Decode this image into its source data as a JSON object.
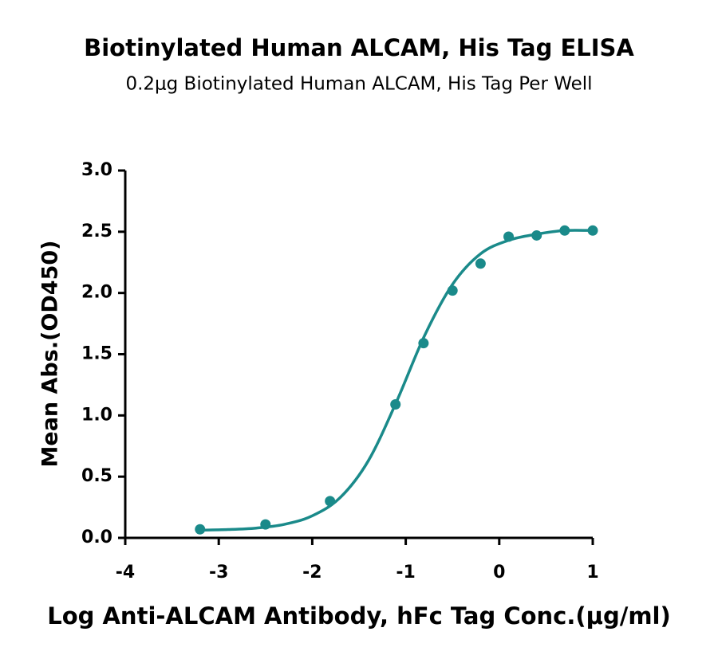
{
  "chart_data": {
    "type": "scatter",
    "title": "Biotinylated Human ALCAM, His Tag ELISA",
    "subtitle": "0.2μg Biotinylated Human ALCAM, His Tag Per Well",
    "x_label": "Log Anti-ALCAM Antibody, hFc Tag Conc.(μg/ml)",
    "y_label": "Mean Abs.(OD450)",
    "color": "#1a8a8a",
    "x": [
      -3.2,
      -2.5,
      -1.81,
      -1.11,
      -0.81,
      -0.5,
      -0.2,
      0.1,
      0.4,
      0.7,
      1.0
    ],
    "values": [
      0.07,
      0.11,
      0.3,
      1.09,
      1.59,
      2.02,
      2.24,
      2.46,
      2.47,
      2.51,
      2.51
    ],
    "fit_curve": {
      "x": [
        -3.2,
        -2.9,
        -2.6,
        -2.3,
        -2.0,
        -1.7,
        -1.4,
        -1.1,
        -0.8,
        -0.5,
        -0.2,
        0.1,
        0.4,
        0.7,
        1.0
      ],
      "values": [
        0.063,
        0.068,
        0.08,
        0.11,
        0.18,
        0.33,
        0.63,
        1.11,
        1.65,
        2.07,
        2.32,
        2.43,
        2.48,
        2.51,
        2.51
      ]
    },
    "xlim": [
      -4,
      1
    ],
    "xticks": [
      -4,
      -3,
      -2,
      -1,
      0,
      1
    ],
    "ylim": [
      0,
      3
    ],
    "yticks": [
      {
        "value": 0,
        "label": "0.0"
      },
      0.5,
      {
        "value": 1,
        "label": "1.0"
      },
      1.5,
      {
        "value": 2,
        "label": "2.0"
      },
      2.5,
      {
        "value": 3,
        "label": "3.0"
      }
    ]
  }
}
